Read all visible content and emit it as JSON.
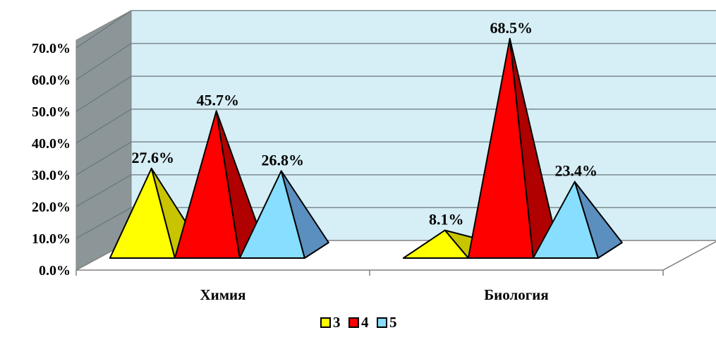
{
  "chart_data": {
    "type": "bar",
    "style": "3d-pyramid",
    "categories": [
      "Химия",
      "Биология"
    ],
    "series": [
      {
        "name": "3",
        "values": [
          27.6,
          8.1
        ],
        "labels": [
          "27.6%",
          "8.1%"
        ],
        "color": "#FFFF00",
        "side_color": "#C8C400"
      },
      {
        "name": "4",
        "values": [
          45.7,
          68.5
        ],
        "labels": [
          "45.7%",
          "68.5%"
        ],
        "color": "#FF0000",
        "side_color": "#B00000"
      },
      {
        "name": "5",
        "values": [
          26.8,
          23.4
        ],
        "labels": [
          "26.8%",
          "23.4%"
        ],
        "color": "#87DEFF",
        "side_color": "#5B8FBF"
      }
    ],
    "y_ticks": [
      "0.0%",
      "10.0%",
      "20.0%",
      "30.0%",
      "40.0%",
      "50.0%",
      "60.0%",
      "70.0%"
    ],
    "ylim": [
      0,
      70
    ],
    "grid": true,
    "legend_position": "bottom",
    "wall_color": "#D6EEF5",
    "side_wall_color": "#8C9699"
  }
}
